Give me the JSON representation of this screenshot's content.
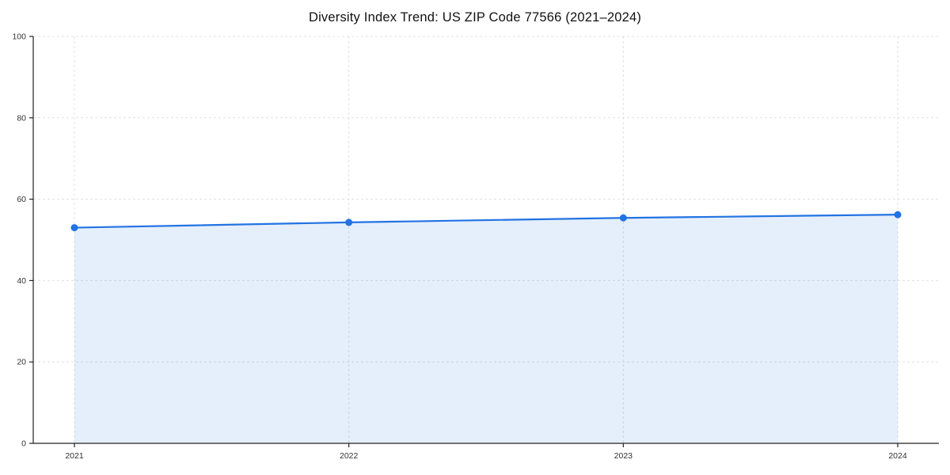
{
  "chart_data": {
    "type": "line",
    "title": "Diversity Index Trend: US ZIP Code 77566 (2021–2024)",
    "x_categories": [
      "2021",
      "2022",
      "2023",
      "2024"
    ],
    "series": [
      {
        "name": "Diversity Index",
        "values": [
          53,
          54.3,
          55.4,
          56.2
        ]
      }
    ],
    "ylim": [
      0,
      100
    ],
    "yticks": [
      0,
      20,
      40,
      60,
      80,
      100
    ],
    "grid": true,
    "grid_style": "dashed",
    "legend": "none",
    "colors": {
      "line": "#2273e3",
      "marker": "#2273e3",
      "fill": "#2a7de1",
      "fill_opacity": 0.12,
      "grid": "#e0e0e0",
      "axis": "#222222",
      "tick_label": "#333333",
      "title": "#111111",
      "background": "#ffffff"
    }
  }
}
